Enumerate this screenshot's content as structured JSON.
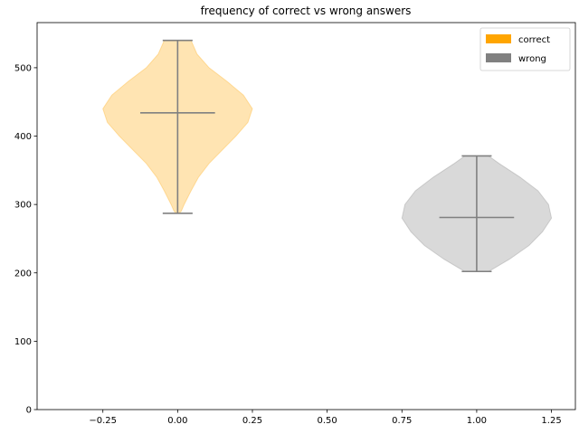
{
  "chart_data": {
    "type": "violin",
    "title": "frequency of correct vs wrong answers",
    "xlabel": "",
    "ylabel": "",
    "xlim": [
      -0.47,
      1.33
    ],
    "ylim": [
      0,
      566
    ],
    "x_ticks": [
      -0.25,
      0.0,
      0.25,
      0.5,
      0.75,
      1.0,
      1.25
    ],
    "x_tick_labels": [
      "−0.25",
      "0.00",
      "0.25",
      "0.50",
      "0.75",
      "1.00",
      "1.25"
    ],
    "y_ticks": [
      0,
      100,
      200,
      300,
      400,
      500
    ],
    "y_tick_labels": [
      "0",
      "100",
      "200",
      "300",
      "400",
      "500"
    ],
    "grid": false,
    "legend_position": "top-right",
    "series": [
      {
        "name": "correct",
        "position": 0,
        "color": "#ffa500",
        "min": 287,
        "mean": 434,
        "max": 540,
        "profile": [
          [
            287,
            0.003
          ],
          [
            290,
            0.012
          ],
          [
            300,
            0.022
          ],
          [
            320,
            0.045
          ],
          [
            340,
            0.07
          ],
          [
            360,
            0.105
          ],
          [
            380,
            0.15
          ],
          [
            400,
            0.195
          ],
          [
            420,
            0.235
          ],
          [
            440,
            0.25
          ],
          [
            460,
            0.22
          ],
          [
            480,
            0.165
          ],
          [
            500,
            0.105
          ],
          [
            520,
            0.065
          ],
          [
            540,
            0.045
          ]
        ]
      },
      {
        "name": "wrong",
        "position": 1,
        "color": "#808080",
        "min": 202,
        "mean": 281,
        "max": 371,
        "profile": [
          [
            202,
            0.04
          ],
          [
            220,
            0.11
          ],
          [
            240,
            0.175
          ],
          [
            260,
            0.22
          ],
          [
            280,
            0.25
          ],
          [
            300,
            0.24
          ],
          [
            320,
            0.205
          ],
          [
            340,
            0.145
          ],
          [
            360,
            0.075
          ],
          [
            371,
            0.04
          ]
        ]
      }
    ]
  }
}
